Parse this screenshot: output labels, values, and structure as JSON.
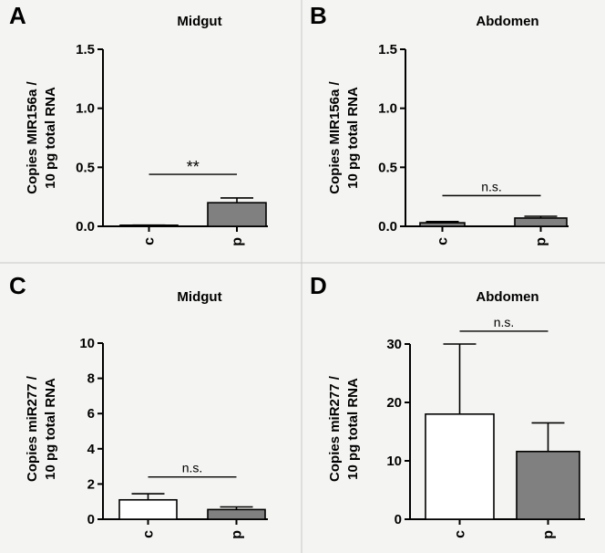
{
  "figure": {
    "background": "#f4f4f2",
    "divider_color": "#c8c8c8"
  },
  "chart_data": [
    {
      "panel_letter": "A",
      "type": "bar",
      "title": "Midgut",
      "ylabel": [
        "Copies MIR156a /",
        "10 pg total RNA"
      ],
      "xlabel": "",
      "categories": [
        "c",
        "p"
      ],
      "values": [
        0.005,
        0.2
      ],
      "errors": [
        0.005,
        0.04
      ],
      "bar_colors": [
        "#ffffff",
        "#808080"
      ],
      "ylim": [
        0,
        1.5
      ],
      "yticks": [
        0,
        0.5,
        1,
        1.5
      ],
      "ytick_labels": [
        "0.0",
        "0.5",
        "1.0",
        "1.5"
      ],
      "significance": {
        "label": "**",
        "line_y": 0.44
      }
    },
    {
      "panel_letter": "B",
      "type": "bar",
      "title": "Abdomen",
      "ylabel": [
        "Copies MIR156a /",
        "10 pg total RNA"
      ],
      "xlabel": "",
      "categories": [
        "c",
        "p"
      ],
      "values": [
        0.03,
        0.07
      ],
      "errors": [
        0.01,
        0.015
      ],
      "bar_colors": [
        "#808080",
        "#808080"
      ],
      "ylim": [
        0,
        1.5
      ],
      "yticks": [
        0,
        0.5,
        1,
        1.5
      ],
      "ytick_labels": [
        "0.0",
        "0.5",
        "1.0",
        "1.5"
      ],
      "significance": {
        "label": "n.s.",
        "line_y": 0.26
      }
    },
    {
      "panel_letter": "C",
      "type": "bar",
      "title": "Midgut",
      "ylabel": [
        "Copies miR277 /",
        "10 pg total RNA"
      ],
      "xlabel": "",
      "categories": [
        "c",
        "p"
      ],
      "values": [
        1.1,
        0.55
      ],
      "errors": [
        0.35,
        0.15
      ],
      "bar_colors": [
        "#ffffff",
        "#808080"
      ],
      "ylim": [
        0,
        10
      ],
      "yticks": [
        0,
        2,
        4,
        6,
        8,
        10
      ],
      "ytick_labels": [
        "0",
        "2",
        "4",
        "6",
        "8",
        "10"
      ],
      "significance": {
        "label": "n.s.",
        "line_y": 2.4
      }
    },
    {
      "panel_letter": "D",
      "type": "bar",
      "title": "Abdomen",
      "ylabel": [
        "Copies miR277 /",
        "10 pg total RNA"
      ],
      "xlabel": "",
      "categories": [
        "c",
        "p"
      ],
      "values": [
        18,
        11.6
      ],
      "errors": [
        12,
        4.9
      ],
      "bar_colors": [
        "#ffffff",
        "#808080"
      ],
      "ylim": [
        0,
        30
      ],
      "yticks": [
        0,
        10,
        20,
        30
      ],
      "ytick_labels": [
        "0",
        "10",
        "20",
        "30"
      ],
      "significance": {
        "label": "n.s.",
        "line_y": 32.2
      }
    }
  ]
}
